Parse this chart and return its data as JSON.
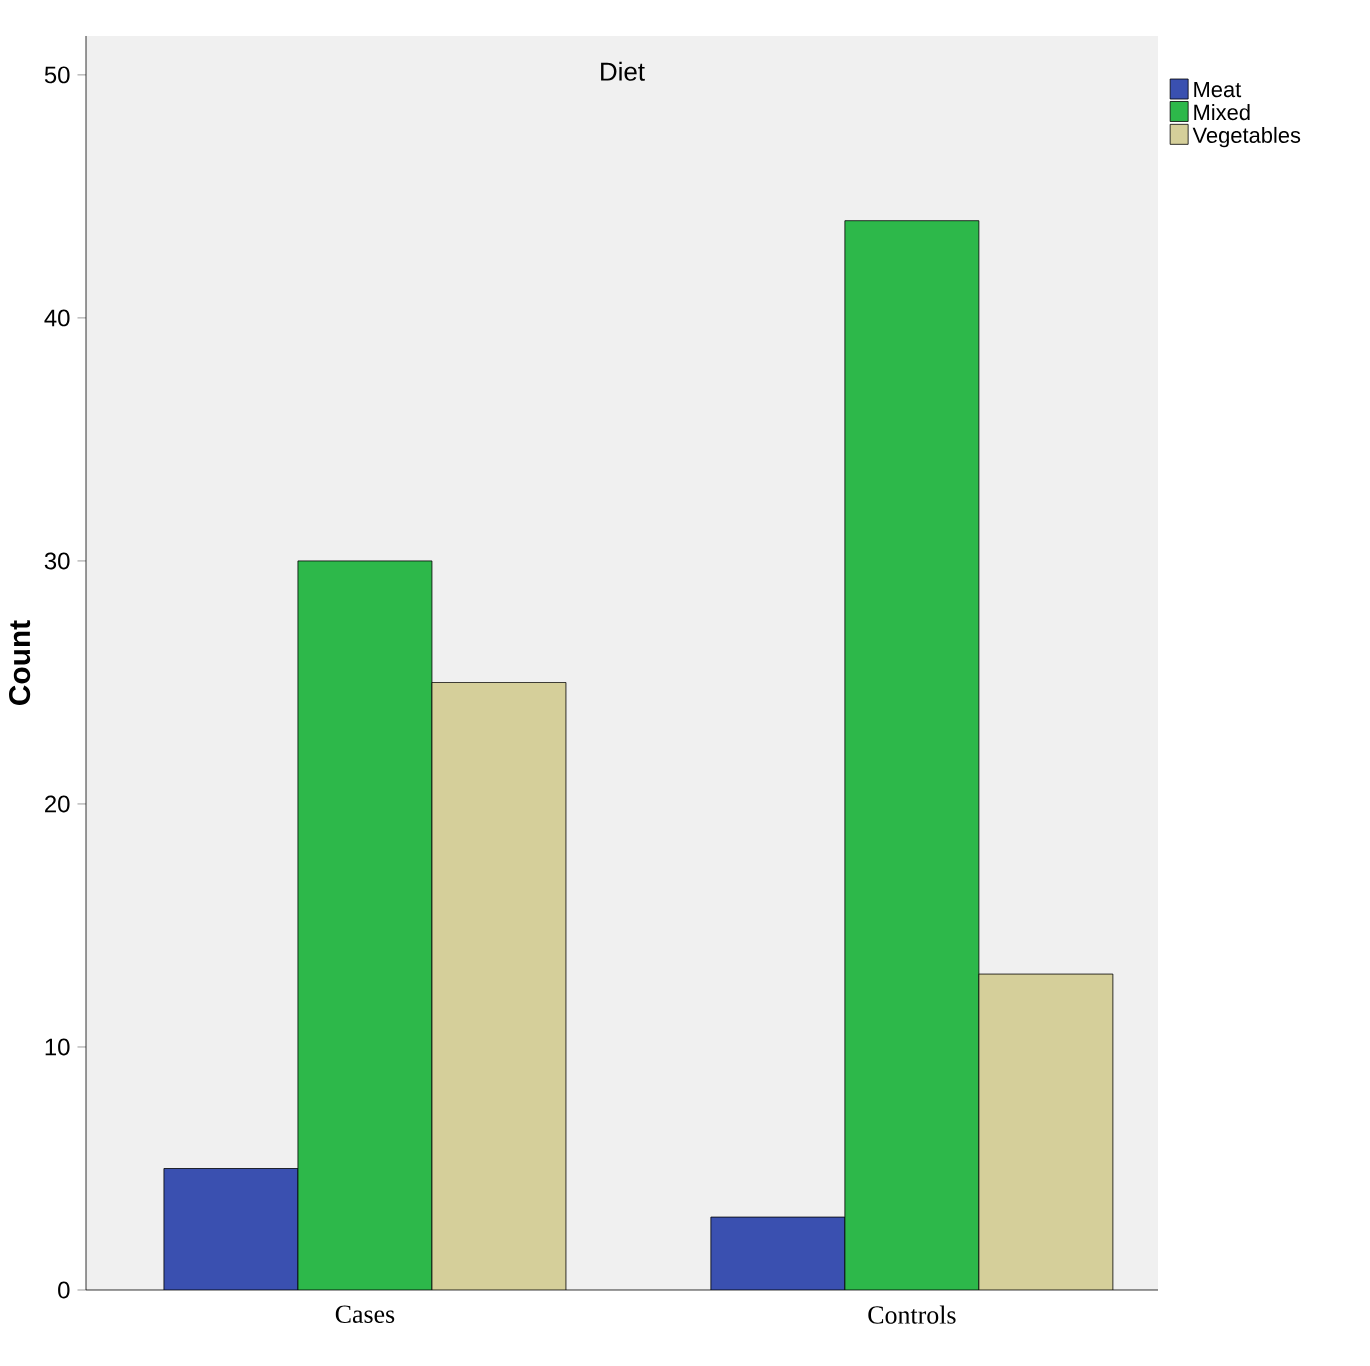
{
  "chart_data": {
    "type": "bar",
    "legend_title": "Diet",
    "ylabel": "Count",
    "categories": [
      "Cases",
      "Controls"
    ],
    "series": [
      {
        "name": "Meat",
        "color": "#3a50b0",
        "values": [
          5,
          3
        ]
      },
      {
        "name": "Mixed",
        "color": "#2db84a",
        "values": [
          30,
          44
        ]
      },
      {
        "name": "Vegetables",
        "color": "#d5cf9a",
        "values": [
          25,
          13
        ]
      }
    ],
    "ylim": [
      0,
      51.6
    ],
    "yticks": [
      0,
      10,
      20,
      30,
      40,
      50
    ],
    "grid": false,
    "legend": "top right"
  }
}
